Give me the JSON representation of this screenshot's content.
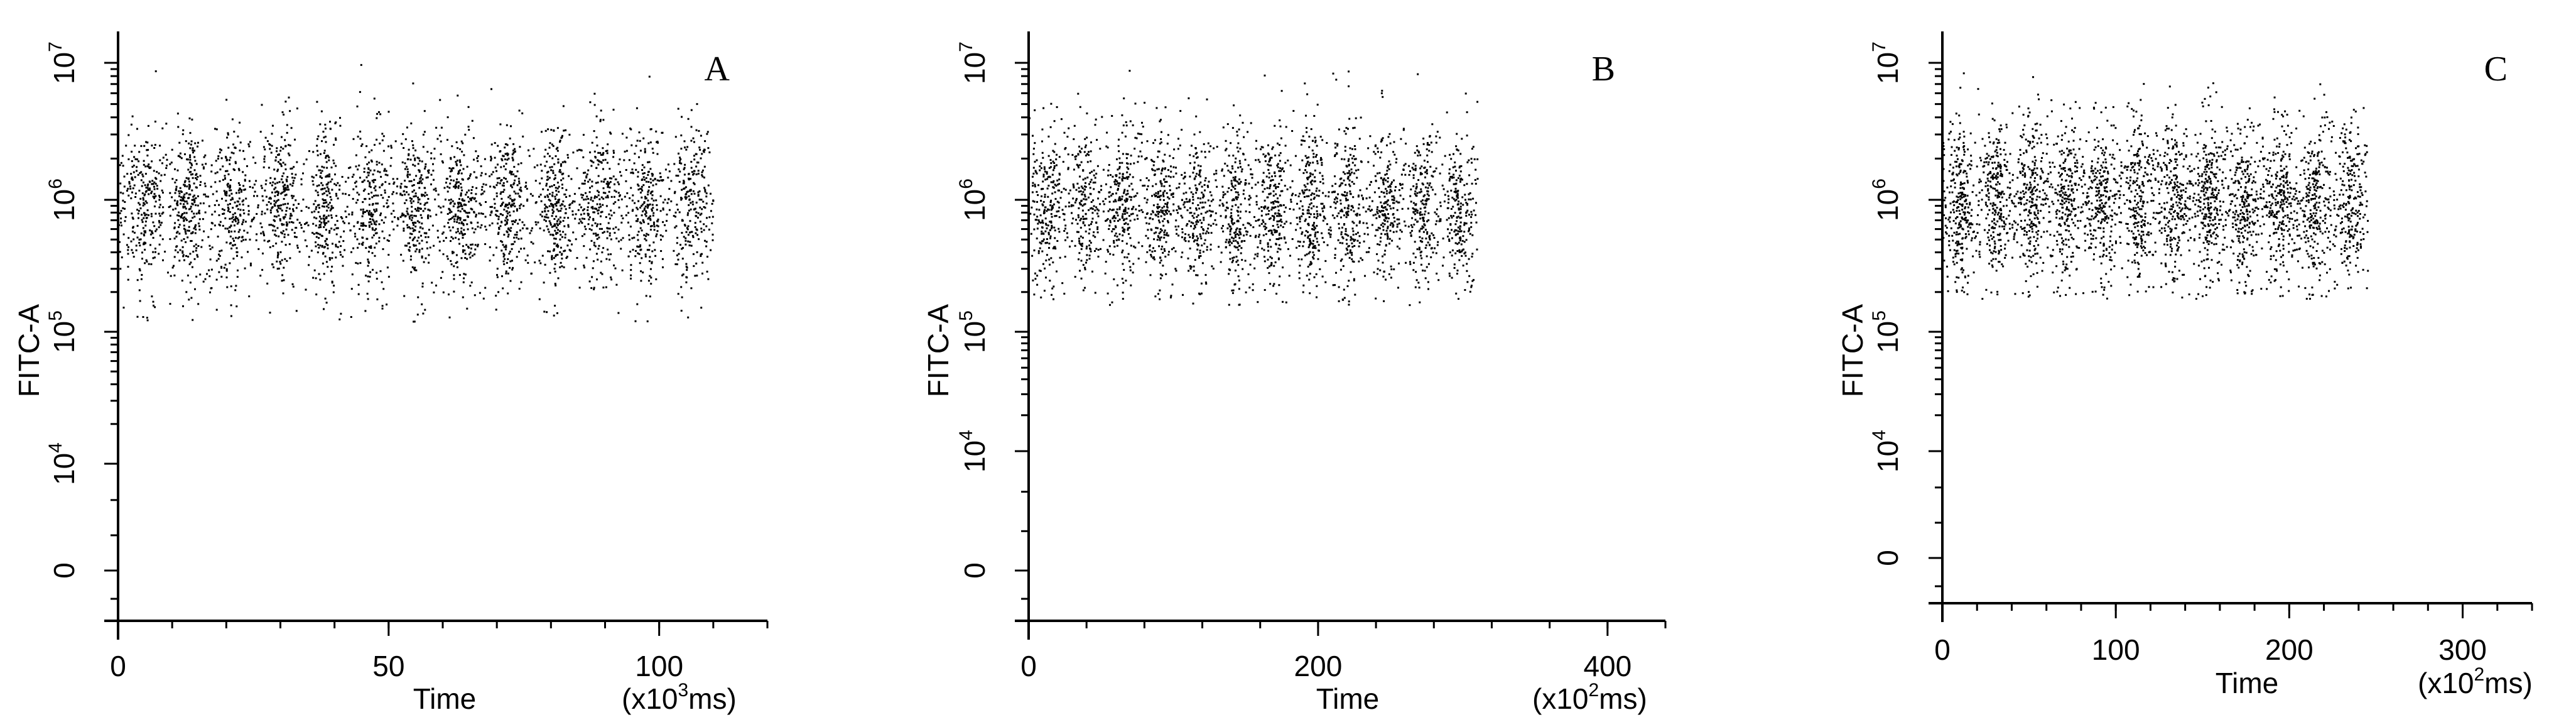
{
  "chart_data": [
    {
      "type": "scatter",
      "panel_label": "A",
      "ylabel": "FITC-A",
      "xlabel": "Time",
      "x_unit": {
        "prefix": "(x10",
        "exp": "3",
        "suffix": "ms)"
      },
      "xlim": [
        0,
        120
      ],
      "x_ticks": [
        "0",
        "50",
        "100"
      ],
      "y_scale": "log",
      "y_ticks": [
        {
          "base": "0",
          "exp": ""
        },
        {
          "base": "10",
          "exp": "4"
        },
        {
          "base": "10",
          "exp": "5"
        },
        {
          "base": "10",
          "exp": "6"
        },
        {
          "base": "10",
          "exp": "7"
        }
      ],
      "points": {
        "x_range": [
          0,
          110
        ],
        "y_center": 900000,
        "y_min": 120000,
        "y_max": 10000000,
        "bands": 13,
        "count": 3600
      }
    },
    {
      "type": "scatter",
      "panel_label": "B",
      "ylabel": "FITC-A",
      "xlabel": "Time",
      "x_unit": {
        "prefix": "(x10",
        "exp": "2",
        "suffix": "ms)"
      },
      "xlim": [
        0,
        440
      ],
      "x_ticks": [
        "0",
        "200",
        "400"
      ],
      "y_scale": "log",
      "y_ticks": [
        {
          "base": "0",
          "exp": ""
        },
        {
          "base": "10",
          "exp": "4"
        },
        {
          "base": "10",
          "exp": "5"
        },
        {
          "base": "10",
          "exp": "6"
        },
        {
          "base": "10",
          "exp": "7"
        }
      ],
      "points": {
        "x_range": [
          0,
          310
        ],
        "y_center": 900000,
        "y_min": 160000,
        "y_max": 9000000,
        "bands": 12,
        "count": 2900
      }
    },
    {
      "type": "scatter",
      "panel_label": "C",
      "ylabel": "FITC-A",
      "xlabel": "Time",
      "x_unit": {
        "prefix": "(x10",
        "exp": "2",
        "suffix": "ms)"
      },
      "xlim": [
        0,
        340
      ],
      "x_ticks": [
        "0",
        "100",
        "200",
        "300"
      ],
      "y_scale": "log",
      "y_ticks": [
        {
          "base": "0",
          "exp": ""
        },
        {
          "base": "10",
          "exp": "4"
        },
        {
          "base": "10",
          "exp": "5"
        },
        {
          "base": "10",
          "exp": "6"
        },
        {
          "base": "10",
          "exp": "7"
        }
      ],
      "points": {
        "x_range": [
          0,
          245
        ],
        "y_center": 1000000,
        "y_min": 180000,
        "y_max": 9000000,
        "bands": 12,
        "count": 3300
      }
    }
  ]
}
